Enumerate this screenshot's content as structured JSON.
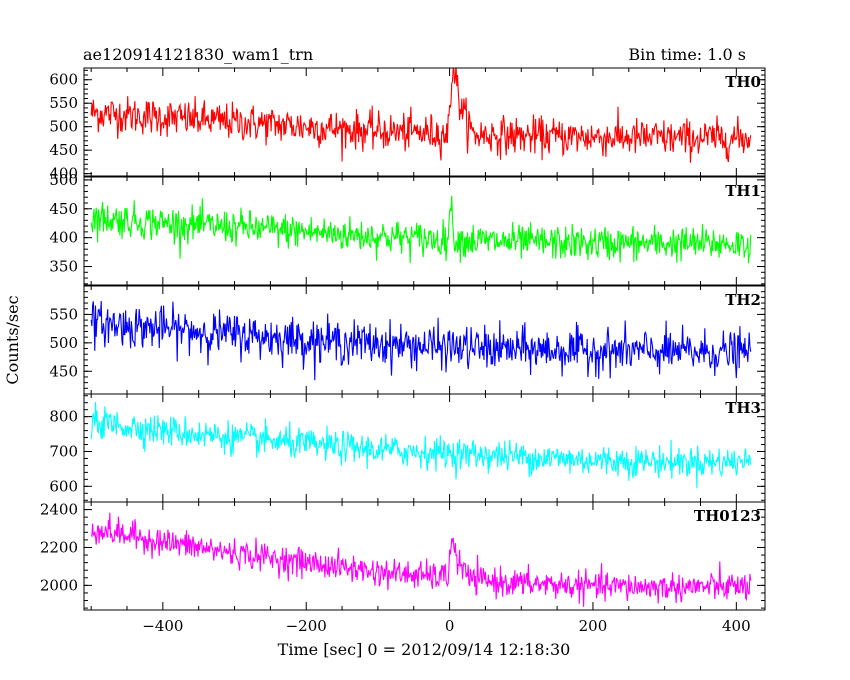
{
  "header": {
    "left": "ae120914121830_wam1_trn",
    "right": "Bin time: 1.0 s"
  },
  "chart_data": {
    "type": "line",
    "xlabel": "Time [sec] 0 = 2012/09/14 12:18:30",
    "ylabel": "Counts/sec",
    "xlim": [
      -510,
      440
    ],
    "xticks": [
      -400,
      -200,
      0,
      200,
      400
    ],
    "x_range": [
      -500,
      420
    ],
    "bin_time": 1.0,
    "grid": false,
    "series": [
      {
        "name": "TH0",
        "color": "#ff0000",
        "ylim": [
          395,
          625
        ],
        "yticks": [
          400,
          450,
          500,
          550,
          600
        ],
        "trend_x": [
          -500,
          -400,
          -300,
          -200,
          -100,
          0,
          100,
          200,
          300,
          420
        ],
        "trend_y": [
          530,
          520,
          510,
          500,
          490,
          485,
          480,
          478,
          476,
          475
        ],
        "noise": 32,
        "flare": {
          "t0": 0,
          "x": [
            -3,
            0,
            3,
            6,
            9,
            12,
            15,
            20,
            25,
            30
          ],
          "y": [
            470,
            540,
            600,
            630,
            600,
            570,
            545,
            525,
            510,
            495
          ]
        }
      },
      {
        "name": "TH1",
        "color": "#00ff00",
        "ylim": [
          318,
          505
        ],
        "yticks": [
          350,
          400,
          450,
          500
        ],
        "trend_x": [
          -500,
          -400,
          -300,
          -200,
          -100,
          0,
          100,
          200,
          300,
          420
        ],
        "trend_y": [
          435,
          425,
          418,
          410,
          402,
          396,
          392,
          390,
          390,
          389
        ],
        "noise": 24,
        "flare": {
          "t0": 0,
          "x": [
            -2,
            0,
            2,
            4,
            8
          ],
          "y": [
            410,
            440,
            460,
            420,
            400
          ]
        }
      },
      {
        "name": "TH2",
        "color": "#0000ff",
        "ylim": [
          410,
          600
        ],
        "yticks": [
          450,
          500,
          550
        ],
        "trend_x": [
          -500,
          -400,
          -300,
          -200,
          -100,
          0,
          100,
          200,
          300,
          420
        ],
        "trend_y": [
          535,
          525,
          515,
          505,
          498,
          492,
          488,
          486,
          484,
          483
        ],
        "noise": 30,
        "flare": null
      },
      {
        "name": "TH3",
        "color": "#00ffff",
        "ylim": [
          555,
          865
        ],
        "yticks": [
          600,
          700,
          800
        ],
        "trend_x": [
          -500,
          -400,
          -300,
          -200,
          -100,
          0,
          100,
          200,
          300,
          420
        ],
        "trend_y": [
          785,
          760,
          740,
          720,
          705,
          695,
          685,
          675,
          670,
          670
        ],
        "noise": 36,
        "flare": null
      },
      {
        "name": "TH0123",
        "color": "#ff00ff",
        "ylim": [
          1870,
          2440
        ],
        "yticks": [
          2000,
          2200,
          2400
        ],
        "trend_x": [
          -500,
          -400,
          -300,
          -200,
          -100,
          0,
          100,
          200,
          300,
          420
        ],
        "trend_y": [
          2300,
          2230,
          2170,
          2120,
          2070,
          2040,
          2010,
          1995,
          1990,
          1995
        ],
        "noise": 60,
        "flare": {
          "t0": 0,
          "x": [
            -2,
            0,
            3,
            6,
            10,
            15,
            25
          ],
          "y": [
            2050,
            2180,
            2240,
            2200,
            2150,
            2100,
            2060
          ]
        }
      }
    ]
  }
}
